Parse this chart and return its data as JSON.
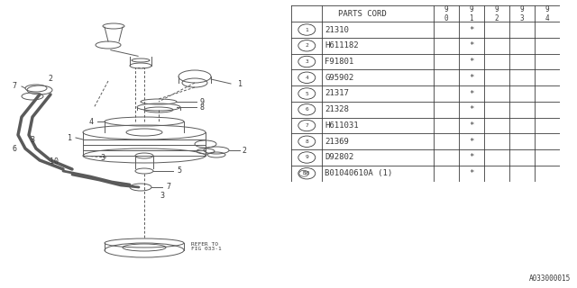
{
  "bg_color": "#ffffff",
  "line_color": "#5a5a5a",
  "text_color": "#3a3a3a",
  "watermark": "A033000015",
  "header_label": "PARTS CORD",
  "year_headers": [
    "9\n0",
    "9\n1",
    "9\n2",
    "9\n3",
    "9\n4"
  ],
  "parts": [
    [
      "1",
      "21310",
      "91"
    ],
    [
      "2",
      "H611182",
      "91"
    ],
    [
      "3",
      "F91801",
      "91"
    ],
    [
      "4",
      "G95902",
      "91"
    ],
    [
      "5",
      "21317",
      "91"
    ],
    [
      "6",
      "21328",
      "91"
    ],
    [
      "7",
      "H611031",
      "91"
    ],
    [
      "8",
      "21369",
      "91"
    ],
    [
      "9",
      "D92802",
      "91"
    ],
    [
      "10",
      "B01040610A (1)",
      "91"
    ]
  ],
  "font_size_label": 6.5,
  "font_size_code": 6.5,
  "font_size_year": 5.5,
  "font_size_wm": 5.5
}
